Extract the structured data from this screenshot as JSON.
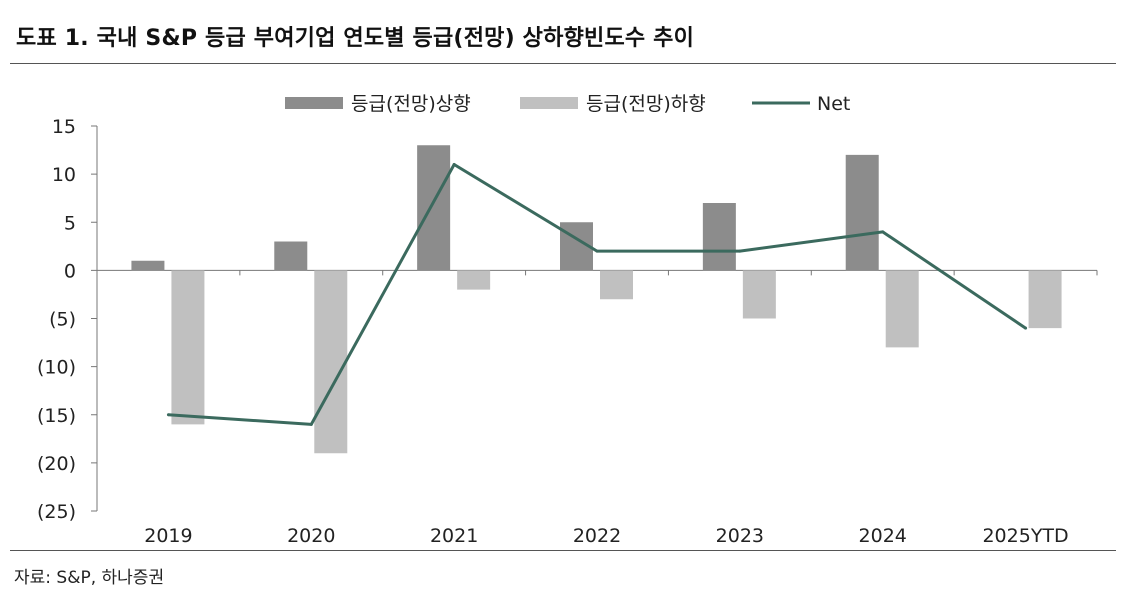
{
  "title": "도표 1. 국내 S&P 등급 부여기업 연도별 등급(전망) 상하향빈도수 추이",
  "source": "자료: S&P, 하나증권",
  "colors": {
    "upgrade": "#8c8c8c",
    "downgrade": "#c0c0c0",
    "net": "#3b6a5e",
    "axis": "#777777",
    "text": "#222222"
  },
  "chart_data": {
    "type": "bar",
    "categories": [
      "2019",
      "2020",
      "2021",
      "2022",
      "2023",
      "2024",
      "2025YTD"
    ],
    "series": [
      {
        "name": "등급(전망)상향",
        "kind": "bar",
        "values": [
          1,
          3,
          13,
          5,
          7,
          12,
          0
        ]
      },
      {
        "name": "등급(전망)하향",
        "kind": "bar",
        "values": [
          -16,
          -19,
          -2,
          -3,
          -5,
          -8,
          -6
        ]
      },
      {
        "name": "Net",
        "kind": "line",
        "values": [
          -15,
          -16,
          11,
          2,
          2,
          4,
          -6
        ]
      }
    ],
    "ylim": [
      -25,
      15
    ],
    "yticks": [
      15,
      10,
      5,
      0,
      -5,
      -10,
      -15,
      -20,
      -25
    ],
    "ytick_labels": [
      "15",
      "10",
      "5",
      "0",
      "(5)",
      "(10)",
      "(15)",
      "(20)",
      "(25)"
    ],
    "legend_position": "top",
    "grid": false
  }
}
